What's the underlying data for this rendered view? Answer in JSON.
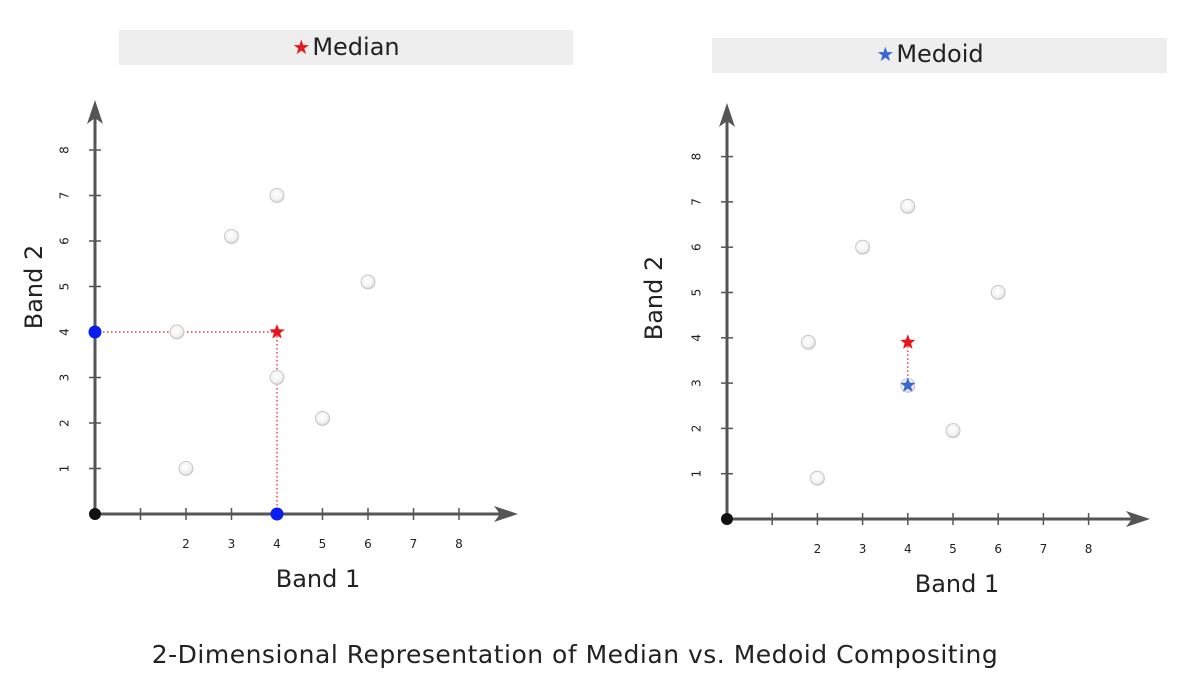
{
  "caption": "2-Dimensional Representation of Median vs. Medoid Compositing",
  "colors": {
    "median": "#e8161c",
    "medoid": "#3a66d6",
    "axis_point": "#0a1cf0",
    "axis": "#555555"
  },
  "chart_data": [
    {
      "type": "scatter",
      "title": "Median",
      "title_marker": "★",
      "title_marker_color": "#e8161c",
      "xlabel": "Band 1",
      "ylabel": "Band 2",
      "xticks": [
        2,
        3,
        4,
        5,
        6,
        7,
        8
      ],
      "yticks": [
        1,
        2,
        3,
        4,
        5,
        6,
        7,
        8
      ],
      "xlim": [
        0,
        8.5
      ],
      "ylim": [
        0,
        8.5
      ],
      "points": [
        {
          "x": 2,
          "y": 1
        },
        {
          "x": 1.8,
          "y": 4
        },
        {
          "x": 3,
          "y": 6.1
        },
        {
          "x": 4,
          "y": 7
        },
        {
          "x": 4,
          "y": 3
        },
        {
          "x": 5,
          "y": 2.1
        },
        {
          "x": 6,
          "y": 5.1
        }
      ],
      "star": {
        "x": 4,
        "y": 4,
        "color": "#e8161c"
      },
      "axis_markers": [
        {
          "x": 0,
          "y": 4
        },
        {
          "x": 4,
          "y": 0
        }
      ],
      "guide_lines": "axes"
    },
    {
      "type": "scatter",
      "title": "Medoid",
      "title_marker": "★",
      "title_marker_color": "#3a66d6",
      "xlabel": "Band 1",
      "ylabel": "Band 2",
      "xticks": [
        2,
        3,
        4,
        5,
        6,
        7,
        8
      ],
      "yticks": [
        1,
        2,
        3,
        4,
        5,
        6,
        7,
        8
      ],
      "xlim": [
        0,
        8.5
      ],
      "ylim": [
        0,
        8.5
      ],
      "points": [
        {
          "x": 2,
          "y": 0.9
        },
        {
          "x": 1.8,
          "y": 3.9
        },
        {
          "x": 3,
          "y": 6
        },
        {
          "x": 4,
          "y": 6.9
        },
        {
          "x": 5,
          "y": 1.95
        },
        {
          "x": 6,
          "y": 5
        }
      ],
      "star": {
        "x": 4,
        "y": 3.9,
        "color": "#e8161c"
      },
      "medoid_star": {
        "x": 4,
        "y": 2.95,
        "color": "#3a66d6"
      },
      "guide_lines": "between-stars"
    }
  ]
}
